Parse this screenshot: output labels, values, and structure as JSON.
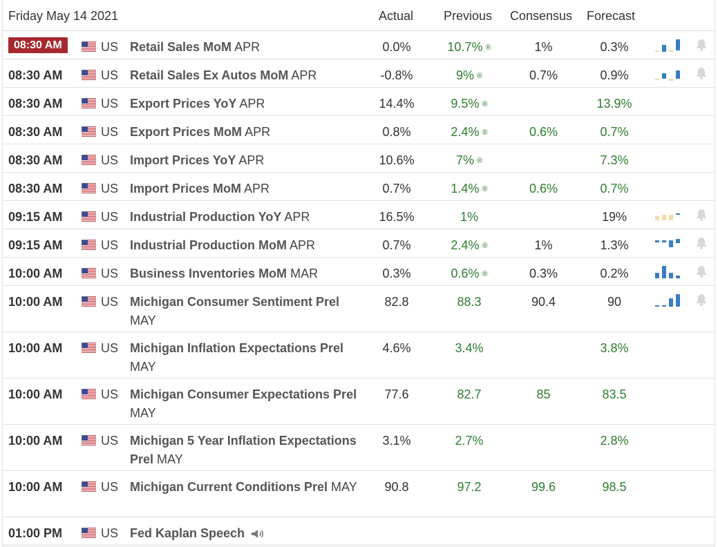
{
  "header": {
    "date": "Friday May 14 2021",
    "col_actual": "Actual",
    "col_previous": "Previous",
    "col_consensus": "Consensus",
    "col_forecast": "Forecast"
  },
  "colors": {
    "badge": "#a5292e",
    "green": "#2e7d2e",
    "bar_blue": "#3b7dc0",
    "bar_tan": "#f0dba8"
  },
  "rows": [
    {
      "time": "08:30 AM",
      "country": "US",
      "event": "Retail Sales MoM",
      "period": "APR",
      "actual": "0.0%",
      "previous": "10.7%",
      "previous_revised": true,
      "consensus": "1%",
      "forecast": "0.3%",
      "current": true
    },
    {
      "time": "08:30 AM",
      "country": "US",
      "event": "Retail Sales Ex Autos MoM",
      "period": "APR",
      "actual": "-0.8%",
      "previous": "9%",
      "previous_revised": true,
      "consensus": "0.7%",
      "forecast": "0.9%"
    },
    {
      "time": "08:30 AM",
      "country": "US",
      "event": "Export Prices YoY",
      "period": "APR",
      "actual": "14.4%",
      "previous": "9.5%",
      "previous_revised": true,
      "consensus": "",
      "forecast": "13.9%"
    },
    {
      "time": "08:30 AM",
      "country": "US",
      "event": "Export Prices MoM",
      "period": "APR",
      "actual": "0.8%",
      "previous": "2.4%",
      "previous_revised": true,
      "consensus": "0.6%",
      "forecast": "0.7%"
    },
    {
      "time": "08:30 AM",
      "country": "US",
      "event": "Import Prices YoY",
      "period": "APR",
      "actual": "10.6%",
      "previous": "7%",
      "previous_revised": true,
      "consensus": "",
      "forecast": "7.3%"
    },
    {
      "time": "08:30 AM",
      "country": "US",
      "event": "Import Prices MoM",
      "period": "APR",
      "actual": "0.7%",
      "previous": "1.4%",
      "previous_revised": true,
      "consensus": "0.6%",
      "forecast": "0.7%"
    },
    {
      "time": "09:15 AM",
      "country": "US",
      "event": "Industrial Production YoY",
      "period": "APR",
      "actual": "16.5%",
      "previous": "1%",
      "previous_revised": false,
      "consensus": "",
      "forecast": "19%"
    },
    {
      "time": "09:15 AM",
      "country": "US",
      "event": "Industrial Production MoM",
      "period": "APR",
      "actual": "0.7%",
      "previous": "2.4%",
      "previous_revised": true,
      "consensus": "1%",
      "forecast": "1.3%"
    },
    {
      "time": "10:00 AM",
      "country": "US",
      "event": "Business Inventories MoM",
      "period": "MAR",
      "actual": "0.3%",
      "previous": "0.6%",
      "previous_revised": true,
      "consensus": "0.3%",
      "forecast": "0.2%"
    },
    {
      "time": "10:00 AM",
      "country": "US",
      "event": "Michigan Consumer Sentiment Prel",
      "period": "MAY",
      "actual": "82.8",
      "previous": "88.3",
      "previous_revised": false,
      "consensus": "90.4",
      "forecast": "90"
    },
    {
      "time": "10:00 AM",
      "country": "US",
      "event": "Michigan Inflation Expectations Prel",
      "period": "MAY",
      "actual": "4.6%",
      "previous": "3.4%",
      "previous_revised": false,
      "consensus": "",
      "forecast": "3.8%"
    },
    {
      "time": "10:00 AM",
      "country": "US",
      "event": "Michigan Consumer Expectations Prel",
      "period": "MAY",
      "actual": "77.6",
      "previous": "82.7",
      "previous_revised": false,
      "consensus": "85",
      "forecast": "83.5"
    },
    {
      "time": "10:00 AM",
      "country": "US",
      "event": "Michigan 5 Year Inflation Expectations Prel",
      "period": "MAY",
      "actual": "3.1%",
      "previous": "2.7%",
      "previous_revised": false,
      "consensus": "",
      "forecast": "2.8%"
    },
    {
      "time": "10:00 AM",
      "country": "US",
      "event": "Michigan Current Conditions Prel",
      "period": "MAY",
      "actual": "90.8",
      "previous": "97.2",
      "previous_revised": false,
      "consensus": "99.6",
      "forecast": "98.5"
    },
    {
      "time": "01:00 PM",
      "country": "US",
      "event": "Fed Kaplan Speech",
      "period": "",
      "actual": "",
      "previous": "",
      "previous_revised": false,
      "consensus": "",
      "forecast": "",
      "speech": true
    }
  ]
}
